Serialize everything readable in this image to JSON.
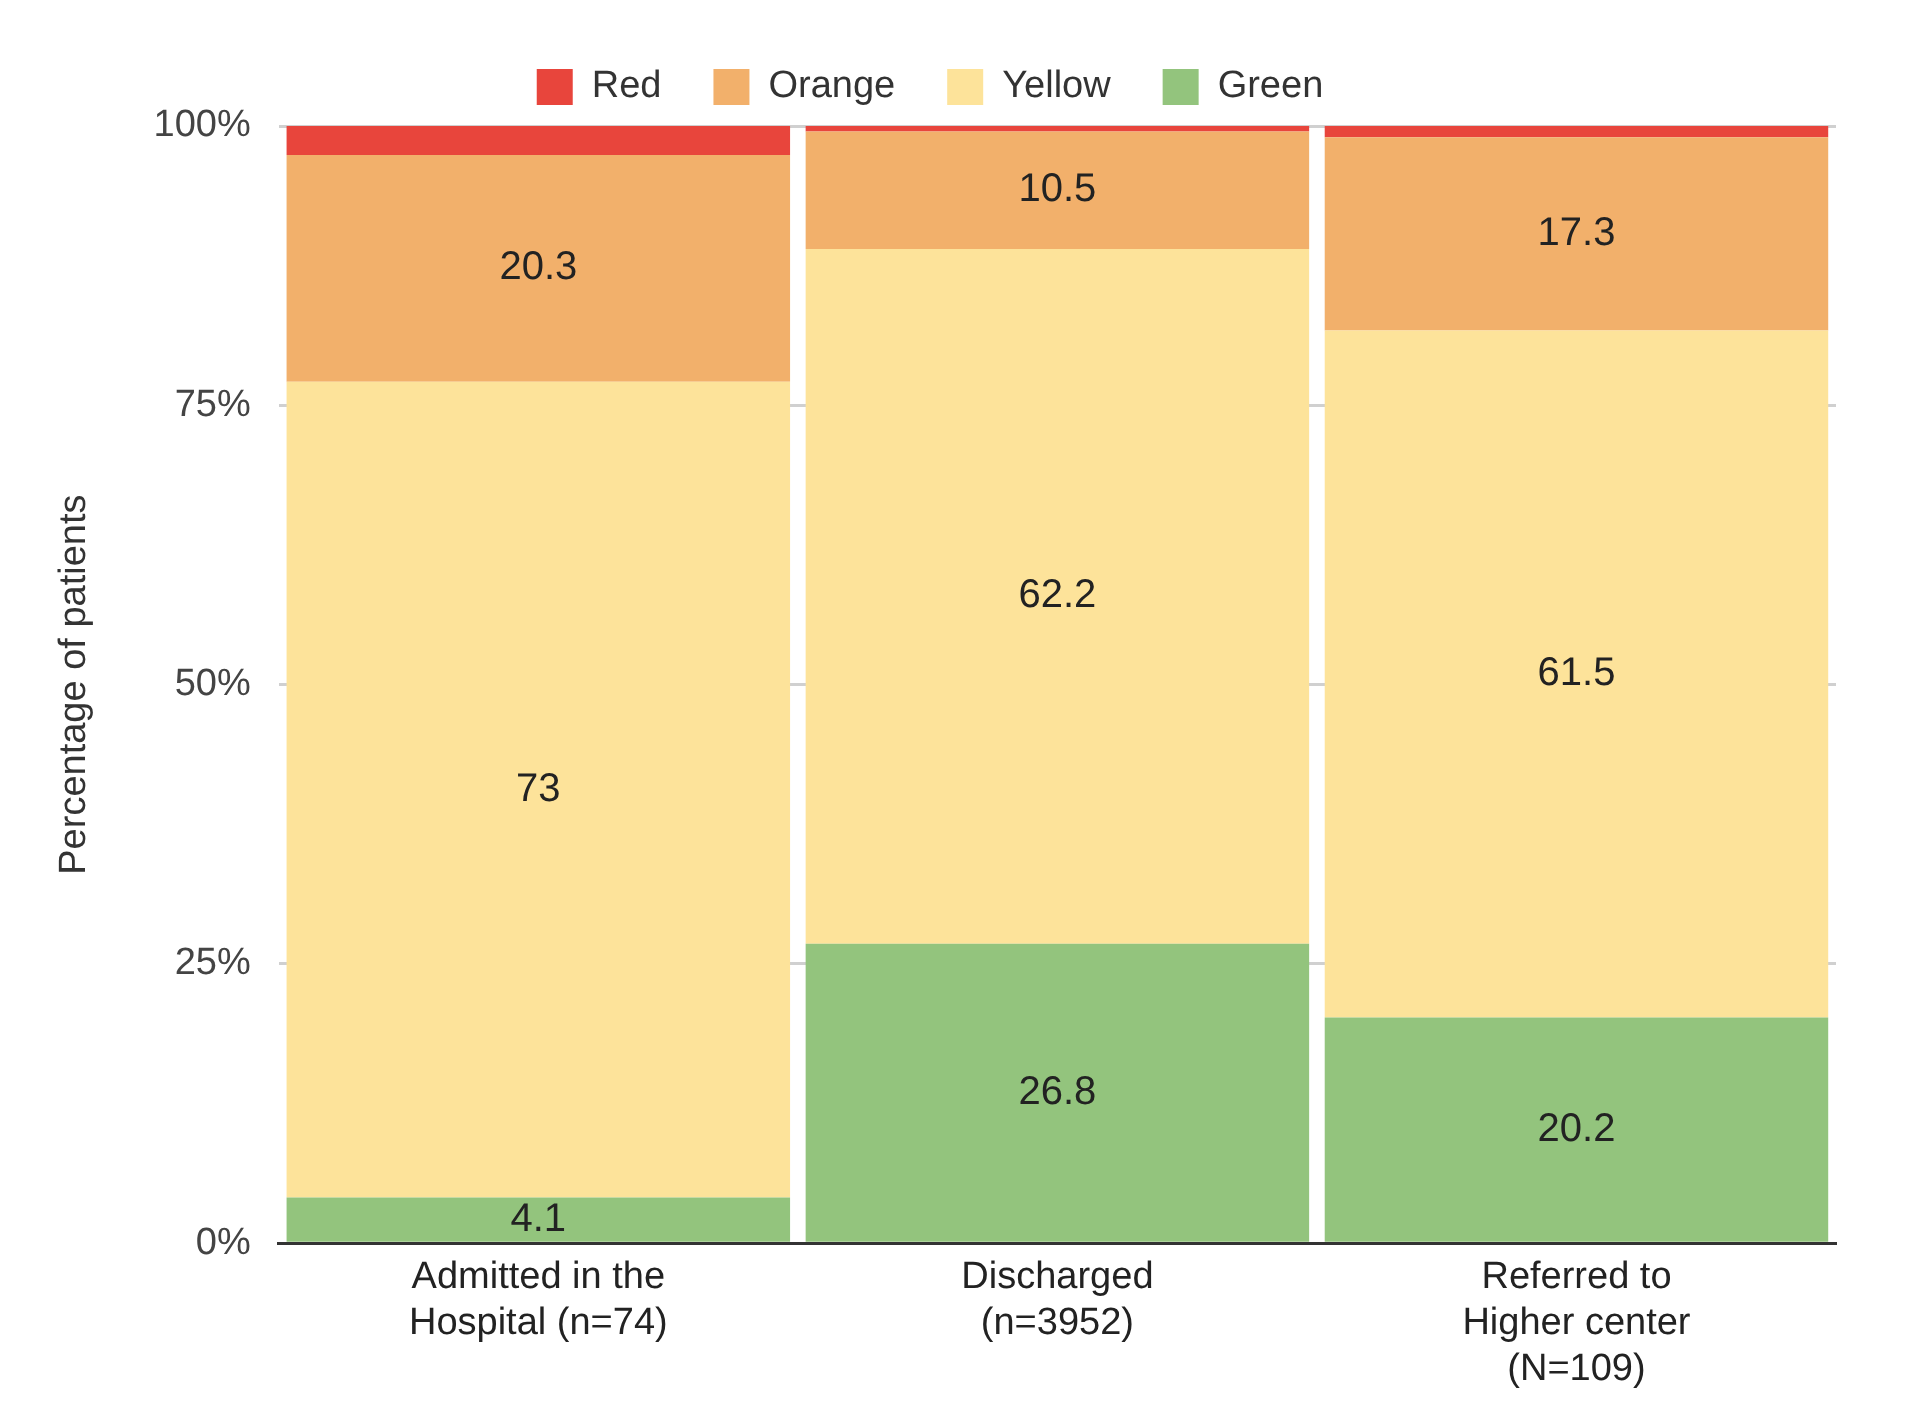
{
  "chart_data": {
    "type": "bar",
    "stacked": true,
    "ylabel": "Percentage of patients",
    "categories": [
      "Admitted in the Hospital (n=74)",
      "Discharged (n=3952)",
      "Referred to Higher center (N=109)"
    ],
    "series": [
      {
        "name": "Green",
        "color": "#93c47d",
        "values": [
          4.1,
          26.8,
          20.2
        ],
        "value_labels": [
          "4.1",
          "26.8",
          "20.2"
        ]
      },
      {
        "name": "Yellow",
        "color": "#fde39a",
        "values": [
          73,
          62.2,
          61.5
        ],
        "value_labels": [
          "73",
          "62.2",
          "61.5"
        ]
      },
      {
        "name": "Orange",
        "color": "#f2b06b",
        "values": [
          20.3,
          10.5,
          17.3
        ],
        "value_labels": [
          "20.3",
          "10.5",
          "17.3"
        ]
      },
      {
        "name": "Red",
        "color": "#e8453c",
        "values": [
          2.6,
          0.5,
          1.0
        ]
      }
    ],
    "ylim": [
      0,
      100
    ],
    "yticks": [
      {
        "value": 0,
        "label": "0%"
      },
      {
        "value": 25,
        "label": "25%"
      },
      {
        "value": 50,
        "label": "50%"
      },
      {
        "value": 75,
        "label": "75%"
      },
      {
        "value": 100,
        "label": "100%"
      }
    ],
    "grid": "y",
    "legend": "top"
  }
}
